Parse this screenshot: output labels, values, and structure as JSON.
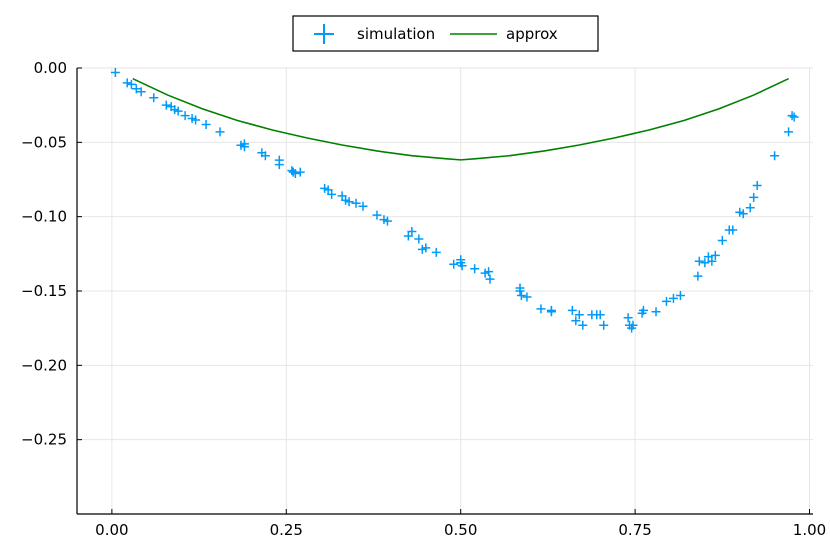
{
  "chart_data": {
    "type": "scatter",
    "title": "",
    "xlabel": "",
    "ylabel": "",
    "xlim": [
      -0.05,
      1.005
    ],
    "ylim": [
      -0.3,
      0.0
    ],
    "x_ticks": [
      0.0,
      0.25,
      0.5,
      0.75,
      1.0
    ],
    "x_tick_labels": [
      "0.00",
      "0.25",
      "0.50",
      "0.75",
      "1.00"
    ],
    "y_ticks": [
      0.0,
      -0.05,
      -0.1,
      -0.15,
      -0.2,
      -0.25
    ],
    "y_tick_labels": [
      "0.00",
      "−0.05",
      "−0.10",
      "−0.15",
      "−0.20",
      "−0.25"
    ],
    "grid": true,
    "legend": {
      "position": "top-center",
      "entries": [
        {
          "label": "simulation",
          "marker": "cross",
          "color": "#009af9"
        },
        {
          "label": "approx",
          "marker": "line",
          "color": "#008000"
        }
      ]
    },
    "series": [
      {
        "name": "simulation",
        "kind": "scatter",
        "marker": "cross",
        "color": "#009af9",
        "x": [
          0.005,
          0.022,
          0.028,
          0.035,
          0.042,
          0.06,
          0.078,
          0.085,
          0.09,
          0.095,
          0.105,
          0.115,
          0.12,
          0.135,
          0.155,
          0.185,
          0.19,
          0.19,
          0.215,
          0.22,
          0.24,
          0.24,
          0.258,
          0.26,
          0.263,
          0.27,
          0.305,
          0.31,
          0.315,
          0.33,
          0.335,
          0.34,
          0.35,
          0.36,
          0.38,
          0.39,
          0.395,
          0.425,
          0.43,
          0.44,
          0.445,
          0.45,
          0.465,
          0.49,
          0.5,
          0.5,
          0.502,
          0.52,
          0.535,
          0.54,
          0.542,
          0.585,
          0.585,
          0.587,
          0.595,
          0.615,
          0.63,
          0.63,
          0.66,
          0.665,
          0.67,
          0.675,
          0.688,
          0.695,
          0.7,
          0.705,
          0.74,
          0.742,
          0.745,
          0.747,
          0.76,
          0.762,
          0.78,
          0.795,
          0.805,
          0.815,
          0.84,
          0.842,
          0.85,
          0.855,
          0.86,
          0.865,
          0.875,
          0.885,
          0.89,
          0.9,
          0.905,
          0.915,
          0.92,
          0.925,
          0.95,
          0.97,
          0.975,
          0.978
        ],
        "y": [
          -0.003,
          -0.01,
          -0.011,
          -0.014,
          -0.016,
          -0.02,
          -0.025,
          -0.026,
          -0.028,
          -0.029,
          -0.032,
          -0.034,
          -0.035,
          -0.038,
          -0.043,
          -0.052,
          -0.051,
          -0.053,
          -0.057,
          -0.059,
          -0.062,
          -0.065,
          -0.069,
          -0.07,
          -0.071,
          -0.07,
          -0.081,
          -0.082,
          -0.085,
          -0.086,
          -0.089,
          -0.09,
          -0.091,
          -0.093,
          -0.099,
          -0.102,
          -0.103,
          -0.113,
          -0.11,
          -0.115,
          -0.122,
          -0.121,
          -0.124,
          -0.132,
          -0.129,
          -0.131,
          -0.133,
          -0.135,
          -0.138,
          -0.137,
          -0.142,
          -0.148,
          -0.15,
          -0.153,
          -0.154,
          -0.162,
          -0.163,
          -0.164,
          -0.163,
          -0.17,
          -0.166,
          -0.173,
          -0.166,
          -0.166,
          -0.166,
          -0.173,
          -0.168,
          -0.173,
          -0.175,
          -0.173,
          -0.165,
          -0.163,
          -0.164,
          -0.157,
          -0.155,
          -0.153,
          -0.14,
          -0.13,
          -0.131,
          -0.127,
          -0.13,
          -0.126,
          -0.116,
          -0.109,
          -0.109,
          -0.097,
          -0.098,
          -0.094,
          -0.087,
          -0.079,
          -0.059,
          -0.043,
          -0.032,
          -0.033
        ]
      },
      {
        "name": "approx",
        "kind": "line",
        "color": "#008000",
        "x": [
          0.03,
          0.08,
          0.13,
          0.18,
          0.23,
          0.28,
          0.33,
          0.38,
          0.43,
          0.48,
          0.5,
          0.52,
          0.57,
          0.62,
          0.67,
          0.72,
          0.77,
          0.82,
          0.87,
          0.92,
          0.97
        ],
        "y": [
          -0.0072,
          -0.0182,
          -0.0275,
          -0.0353,
          -0.0417,
          -0.0471,
          -0.0518,
          -0.0558,
          -0.059,
          -0.0611,
          -0.0618,
          -0.0611,
          -0.059,
          -0.0558,
          -0.0518,
          -0.0471,
          -0.0417,
          -0.0353,
          -0.0275,
          -0.0182,
          -0.0072
        ]
      }
    ]
  }
}
